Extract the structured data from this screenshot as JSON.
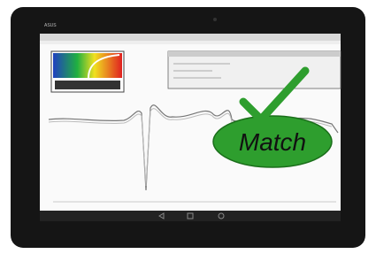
{
  "brand": "ASUS",
  "badge": {
    "label": "Match"
  }
}
